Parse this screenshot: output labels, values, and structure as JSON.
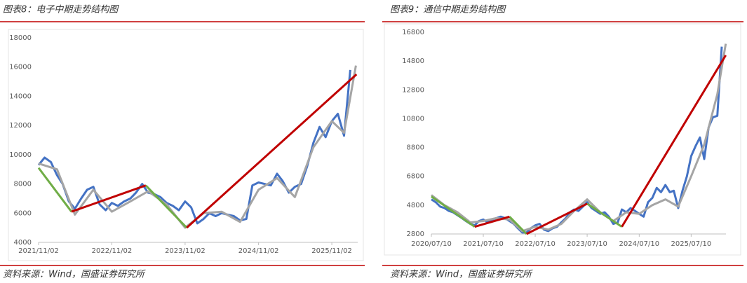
{
  "chart_data": [
    {
      "type": "line",
      "title": "图表8：电子中期走势结构图",
      "source": "资料来源：Wind，国盛证券研究所",
      "ylim": [
        4000,
        18000
      ],
      "yticks": [
        4000,
        6000,
        8000,
        10000,
        12000,
        14000,
        16000,
        18000
      ],
      "xlim": [
        "2021/11/02",
        "2026/04/15"
      ],
      "xticks": [
        "2021/11/02",
        "2022/11/02",
        "2023/11/02",
        "2024/11/02",
        "2025/11/02"
      ],
      "series": [
        {
          "color": "#4472c4",
          "x": [
            "2021/11/02",
            "2021/12/02",
            "2022/01/02",
            "2022/02/02",
            "2022/03/02",
            "2022/04/02",
            "2022/05/02",
            "2022/06/02",
            "2022/07/02",
            "2022/08/02",
            "2022/09/02",
            "2022/10/02",
            "2022/11/02",
            "2022/12/02",
            "2023/01/02",
            "2023/02/02",
            "2023/03/02",
            "2023/04/02",
            "2023/05/02",
            "2023/06/02",
            "2023/07/02",
            "2023/08/02",
            "2023/09/02",
            "2023/10/02",
            "2023/11/02",
            "2023/12/02",
            "2024/01/02",
            "2024/02/02",
            "2024/03/02",
            "2024/04/02",
            "2024/05/02",
            "2024/06/02",
            "2024/07/02",
            "2024/08/02",
            "2024/09/02",
            "2024/10/02",
            "2024/11/02",
            "2024/12/02",
            "2025/01/02",
            "2025/02/02",
            "2025/03/02",
            "2025/04/02",
            "2025/05/02",
            "2025/06/02",
            "2025/07/02",
            "2025/08/02",
            "2025/09/02",
            "2025/10/02",
            "2025/11/02",
            "2025/12/02",
            "2026/01/02",
            "2026/02/02"
          ],
          "values": [
            9300,
            9800,
            9500,
            8600,
            8000,
            6800,
            6300,
            7000,
            7600,
            7800,
            6600,
            6200,
            6700,
            6500,
            6800,
            7000,
            7400,
            8000,
            7400,
            7300,
            7100,
            6700,
            6500,
            6200,
            6800,
            6400,
            5300,
            5600,
            6000,
            5800,
            6000,
            5900,
            5800,
            5500,
            5600,
            7900,
            8100,
            8000,
            7900,
            8700,
            8200,
            7400,
            7800,
            8000,
            9200,
            10800,
            11900,
            11200,
            12300,
            12800,
            11300,
            15800
          ]
        },
        {
          "color": "#a5a5a5",
          "x": [
            "2021/11/02",
            "2022/02/02",
            "2022/05/02",
            "2022/08/02",
            "2022/11/02",
            "2023/02/02",
            "2023/05/02",
            "2023/08/02",
            "2023/11/02",
            "2024/02/02",
            "2024/05/02",
            "2024/08/02",
            "2024/11/02",
            "2025/02/02",
            "2025/05/02",
            "2025/08/02",
            "2025/11/02",
            "2026/01/02",
            "2026/03/02"
          ],
          "values": [
            9400,
            9000,
            5900,
            7600,
            6100,
            6800,
            7500,
            6600,
            5000,
            6000,
            6100,
            5400,
            7600,
            8400,
            7100,
            10500,
            12300,
            11500,
            16100
          ]
        },
        {
          "color": "#70ad47",
          "x": [
            "2021/11/02",
            "2022/04/15",
            "2022/10/01",
            "2023/04/20",
            "2023/11/10"
          ],
          "values": [
            9100,
            6100,
            null,
            7900,
            5000
          ]
        },
        {
          "color": "#c00000",
          "x": [
            "2022/04/15",
            "2023/04/20",
            "2023/08/01",
            "2023/11/10",
            "2026/03/05"
          ],
          "values": [
            6100,
            7900,
            null,
            5000,
            15500
          ]
        }
      ]
    },
    {
      "type": "line",
      "title": "图表9：通信中期走势结构图",
      "source": "资料来源：Wind，国盛证券研究所",
      "ylim": [
        2800,
        16800
      ],
      "yticks": [
        2800,
        4800,
        6800,
        8800,
        10800,
        12800,
        14800,
        16800
      ],
      "xlim": [
        "2020/07/10",
        "2026/04/30"
      ],
      "xticks": [
        "2020/07/10",
        "2021/07/10",
        "2022/07/10",
        "2023/07/10",
        "2024/07/10",
        "2025/07/10"
      ],
      "series": [
        {
          "color": "#4472c4",
          "x": [
            "2020/07/10",
            "2020/08/10",
            "2020/09/10",
            "2020/10/10",
            "2020/11/10",
            "2020/12/10",
            "2021/01/10",
            "2021/02/10",
            "2021/03/10",
            "2021/04/10",
            "2021/05/10",
            "2021/06/10",
            "2021/07/10",
            "2021/08/10",
            "2021/09/10",
            "2021/10/10",
            "2021/11/10",
            "2021/12/10",
            "2022/01/10",
            "2022/02/10",
            "2022/03/10",
            "2022/04/10",
            "2022/05/10",
            "2022/06/10",
            "2022/07/10",
            "2022/08/10",
            "2022/09/10",
            "2022/10/10",
            "2022/11/10",
            "2022/12/10",
            "2023/01/10",
            "2023/02/10",
            "2023/03/10",
            "2023/04/10",
            "2023/05/10",
            "2023/06/10",
            "2023/07/10",
            "2023/08/10",
            "2023/09/10",
            "2023/10/10",
            "2023/11/10",
            "2023/12/10",
            "2024/01/10",
            "2024/02/10",
            "2024/03/10",
            "2024/04/10",
            "2024/05/10",
            "2024/06/10",
            "2024/07/10",
            "2024/08/10",
            "2024/09/10",
            "2024/10/10",
            "2024/11/10",
            "2024/12/10",
            "2025/01/10",
            "2025/02/10",
            "2025/03/10",
            "2025/04/10",
            "2025/05/10",
            "2025/06/10",
            "2025/07/10",
            "2025/08/10",
            "2025/09/10",
            "2025/10/10",
            "2025/11/10",
            "2025/12/10",
            "2026/01/10",
            "2026/02/10"
          ],
          "values": [
            5200,
            5000,
            4700,
            4600,
            4400,
            4300,
            4100,
            3900,
            3700,
            3500,
            3400,
            3700,
            3800,
            3600,
            3800,
            3900,
            4000,
            3900,
            3700,
            3500,
            3200,
            2900,
            2900,
            3200,
            3400,
            3500,
            3100,
            3000,
            3200,
            3300,
            3600,
            3900,
            4300,
            4500,
            4400,
            4700,
            5000,
            4600,
            4400,
            4200,
            4300,
            4000,
            3500,
            3600,
            4500,
            4300,
            4600,
            4400,
            4200,
            4000,
            5000,
            5300,
            6000,
            5700,
            6200,
            5700,
            5800,
            4600,
            5800,
            6800,
            8200,
            8900,
            9500,
            8000,
            10200,
            10900,
            11000,
            15800
          ]
        },
        {
          "color": "#a5a5a5",
          "x": [
            "2020/07/10",
            "2020/10/10",
            "2021/01/10",
            "2021/04/10",
            "2021/07/10",
            "2021/10/10",
            "2022/01/10",
            "2022/04/10",
            "2022/07/10",
            "2022/10/10",
            "2023/01/10",
            "2023/04/10",
            "2023/07/10",
            "2023/10/10",
            "2024/01/10",
            "2024/04/10",
            "2024/07/10",
            "2024/10/10",
            "2025/01/10",
            "2025/04/10",
            "2025/07/10",
            "2025/10/10",
            "2026/01/10",
            "2026/03/10"
          ],
          "values": [
            5500,
            4800,
            4300,
            3600,
            3700,
            3900,
            3800,
            3000,
            3300,
            3100,
            3500,
            4400,
            5200,
            4300,
            3700,
            4300,
            4200,
            4800,
            5200,
            4700,
            6800,
            9000,
            12500,
            16000
          ]
        },
        {
          "color": "#70ad47",
          "x": [
            "2020/07/10",
            "2021/05/10",
            "2021/09/10",
            "2022/01/10",
            "2022/05/10",
            "2022/12/10",
            "2023/07/10",
            "2024/03/10"
          ],
          "values": [
            5400,
            3300,
            null,
            4000,
            2800,
            null,
            4900,
            3300
          ]
        },
        {
          "color": "#c00000",
          "x": [
            "2021/05/10",
            "2022/01/10",
            "2022/03/10",
            "2022/05/10",
            "2023/07/10",
            "2023/11/10",
            "2024/03/10",
            "2026/03/10"
          ],
          "values": [
            3300,
            4000,
            null,
            2800,
            4900,
            null,
            3300,
            15200
          ]
        }
      ]
    }
  ]
}
